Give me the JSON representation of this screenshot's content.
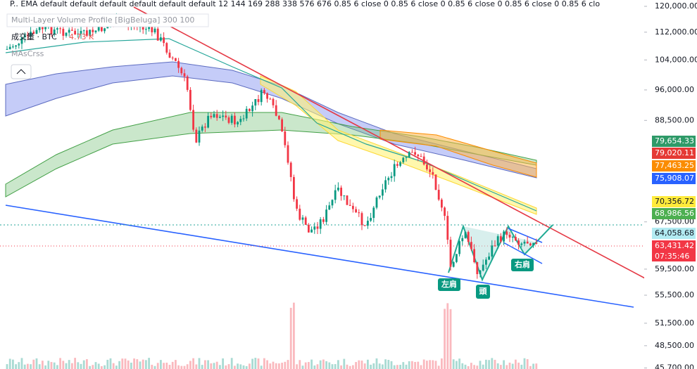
{
  "indicators": {
    "ema": "P.. EMA default default default default default default 12 144 169 288 338 576 676 0.85 6 close 0 0.85 6 close 0 0.85 6 close 0 0.85 6 close 0 0.85 6 clo",
    "volume_profile": "Multi-Layer Volume Profile [BigBeluga] 300 100",
    "volume_label": "成交量 · BTC",
    "volume_value": "4.73 K",
    "ma_cross": "MAsCrss"
  },
  "price_axis": [
    {
      "value": 120000,
      "label": "120,000.00"
    },
    {
      "value": 112000,
      "label": "112,000.00"
    },
    {
      "value": 104000,
      "label": "104,000.00"
    },
    {
      "value": 96000,
      "label": "96,000.00"
    },
    {
      "value": 88500,
      "label": "88,500.00"
    },
    {
      "value": 67500,
      "label": "67,500.00"
    },
    {
      "value": 59500,
      "label": "59,500.00"
    },
    {
      "value": 55500,
      "label": "55,500.00"
    },
    {
      "value": 51500,
      "label": "51,500.00"
    },
    {
      "value": 48500,
      "label": "48,500.00"
    },
    {
      "value": 45700,
      "label": "45,700.00"
    }
  ],
  "price_tags": [
    {
      "value": 79654.33,
      "label": "79,654.33",
      "color": "#2e9a68"
    },
    {
      "value": 79020.11,
      "label": "79,020.11",
      "color": "#e53935"
    },
    {
      "value": 77463.25,
      "label": "77,463.25",
      "color": "#fb8c00"
    },
    {
      "value": 75908.07,
      "label": "75,908.07",
      "color": "#2962ff"
    },
    {
      "value": 70356.72,
      "label": "70,356.72",
      "color": "#ffeb3b"
    },
    {
      "value": 68986.56,
      "label": "68,986.56",
      "color": "#4caf50"
    },
    {
      "value": 64058.68,
      "label": "64,058.68",
      "color": "#b2ebf2"
    },
    {
      "value": 63431.42,
      "label": "63,431.42",
      "color": "#f23645"
    }
  ],
  "countdown": "07:35:46",
  "pattern_labels": [
    "左肩",
    "頭",
    "右肩"
  ]
}
